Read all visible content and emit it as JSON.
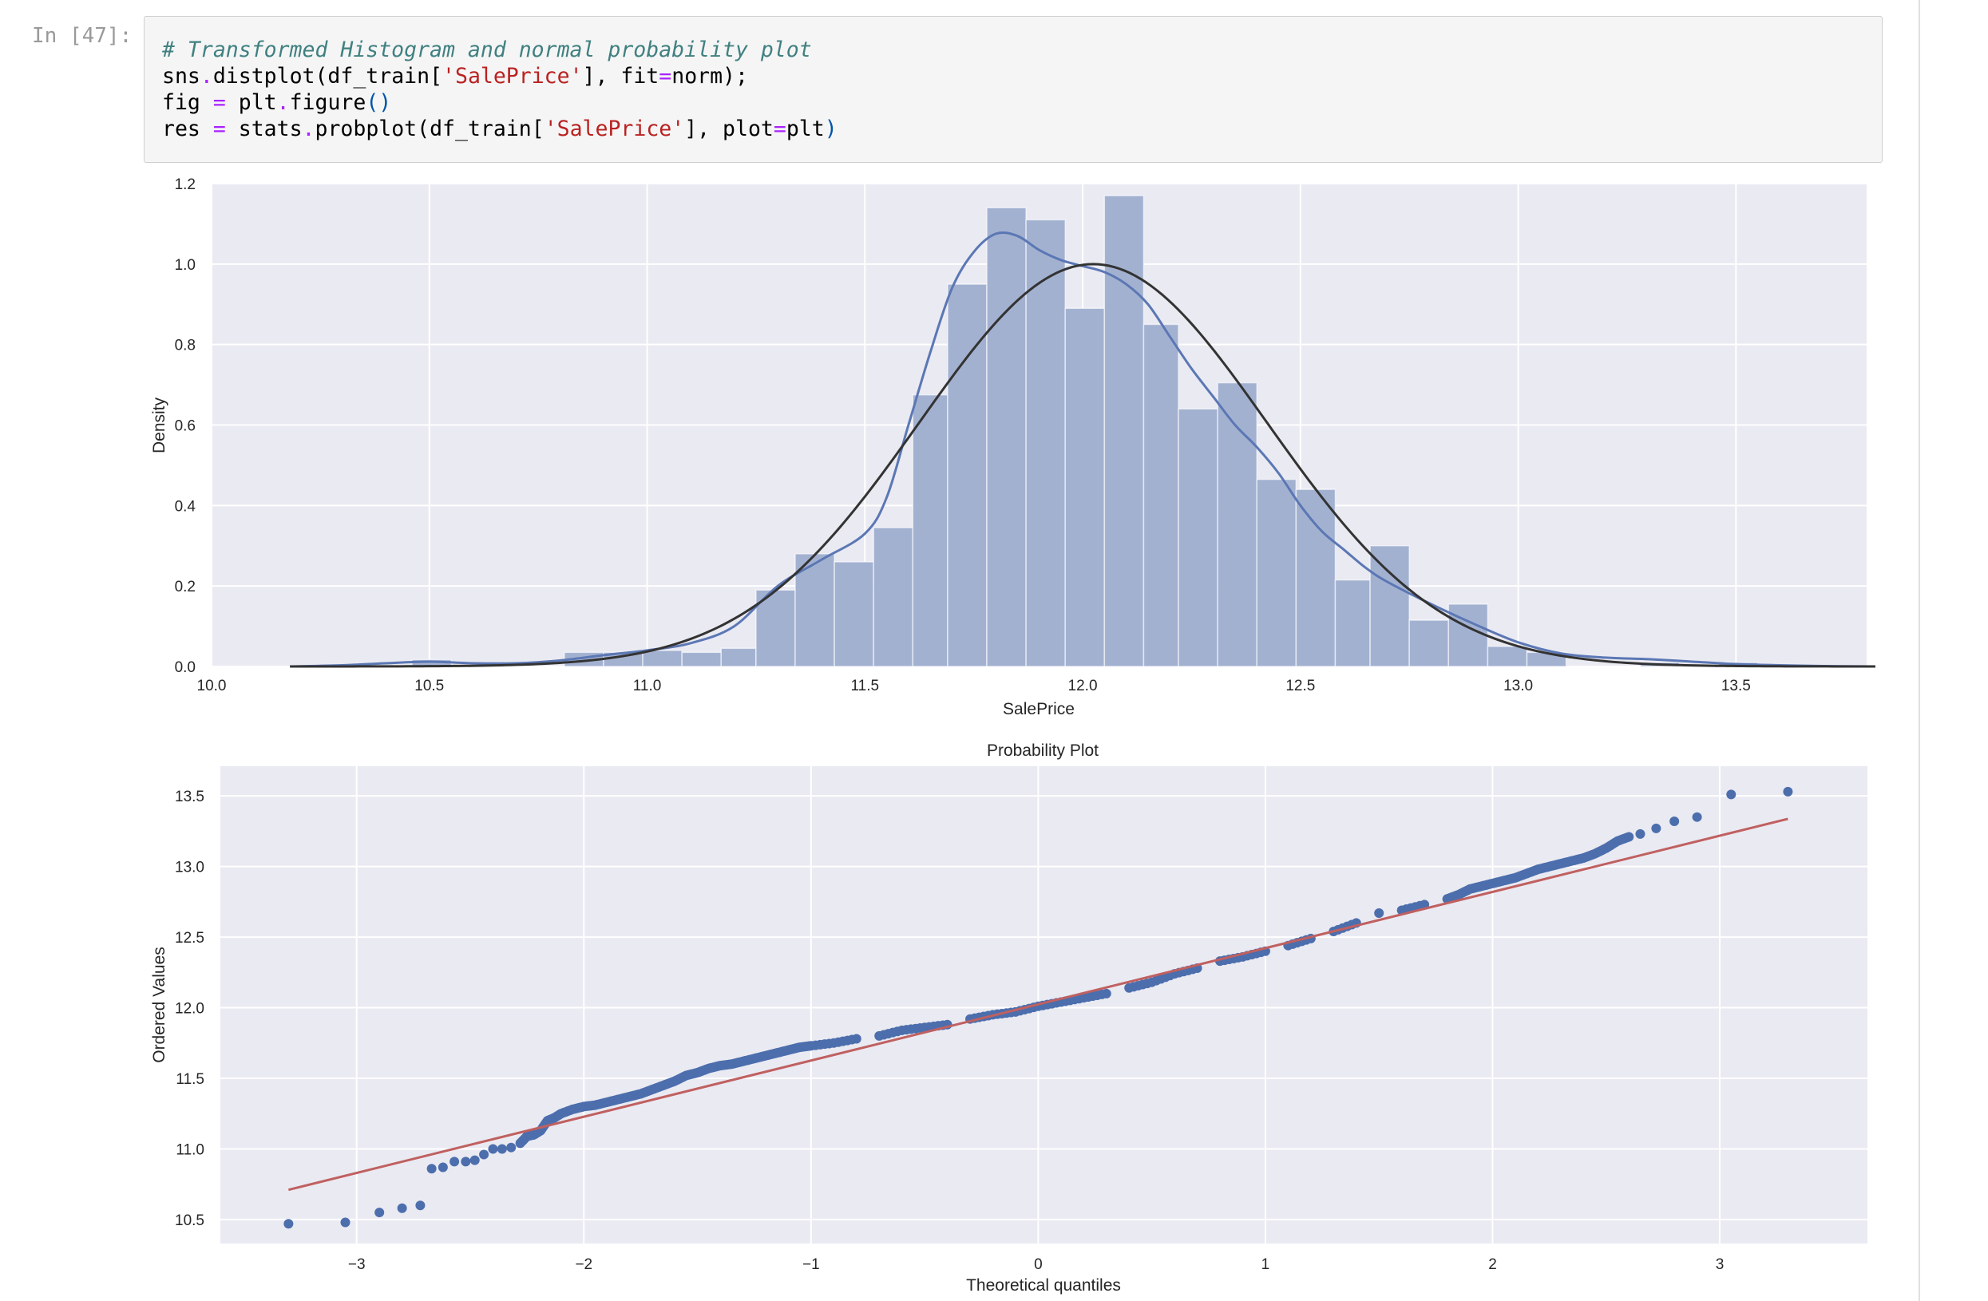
{
  "cell": {
    "prompt": "In [47]:",
    "lines": [
      [
        {
          "t": "# Transformed Histogram and normal probability plot",
          "c": "c-comment"
        }
      ],
      [
        {
          "t": "sns",
          "c": ""
        },
        {
          "t": ".",
          "c": "c-op"
        },
        {
          "t": "distplot(df_train[",
          "c": ""
        },
        {
          "t": "'SalePrice'",
          "c": "c-str"
        },
        {
          "t": "], fit",
          "c": ""
        },
        {
          "t": "=",
          "c": "c-op"
        },
        {
          "t": "norm);",
          "c": ""
        }
      ],
      [
        {
          "t": "fig ",
          "c": ""
        },
        {
          "t": "=",
          "c": "c-op"
        },
        {
          "t": " plt",
          "c": ""
        },
        {
          "t": ".",
          "c": "c-op"
        },
        {
          "t": "figure",
          "c": ""
        },
        {
          "t": "()",
          "c": "c-paren"
        }
      ],
      [
        {
          "t": "res ",
          "c": ""
        },
        {
          "t": "=",
          "c": "c-op"
        },
        {
          "t": " stats",
          "c": ""
        },
        {
          "t": ".",
          "c": "c-op"
        },
        {
          "t": "probplot(df_train[",
          "c": ""
        },
        {
          "t": "'SalePrice'",
          "c": "c-str"
        },
        {
          "t": "], plot",
          "c": ""
        },
        {
          "t": "=",
          "c": "c-op"
        },
        {
          "t": "plt",
          "c": ""
        },
        {
          "t": ")",
          "c": "c-paren"
        }
      ]
    ]
  },
  "colors": {
    "plot_bg": "#eaeaf2",
    "grid": "#ffffff",
    "bars": "#a3b1d1",
    "kde": "#5b77b4",
    "fit": "#333333",
    "points": "#4c6ead",
    "ref_line": "#c06060"
  },
  "chart_data": [
    {
      "type": "bar",
      "title": "",
      "xlabel": "SalePrice",
      "ylabel": "Density",
      "xlim": [
        10.0,
        13.8
      ],
      "ylim": [
        0.0,
        1.2
      ],
      "xticks": [
        "10.0",
        "10.5",
        "11.0",
        "11.5",
        "12.0",
        "12.5",
        "13.0",
        "13.5"
      ],
      "yticks": [
        "0.0",
        "0.2",
        "0.4",
        "0.6",
        "0.8",
        "1.0",
        "1.2"
      ],
      "grid": true,
      "bins": [
        {
          "x0": 10.46,
          "x1": 10.55,
          "value": 0.017
        },
        {
          "x0": 10.55,
          "x1": 10.64,
          "value": 0.0
        },
        {
          "x0": 10.64,
          "x1": 10.72,
          "value": 0.0
        },
        {
          "x0": 10.72,
          "x1": 10.81,
          "value": 0.0
        },
        {
          "x0": 10.81,
          "x1": 10.9,
          "value": 0.035
        },
        {
          "x0": 10.9,
          "x1": 10.99,
          "value": 0.035
        },
        {
          "x0": 10.99,
          "x1": 11.08,
          "value": 0.04
        },
        {
          "x0": 11.08,
          "x1": 11.17,
          "value": 0.035
        },
        {
          "x0": 11.17,
          "x1": 11.25,
          "value": 0.045
        },
        {
          "x0": 11.25,
          "x1": 11.34,
          "value": 0.19
        },
        {
          "x0": 11.34,
          "x1": 11.43,
          "value": 0.28
        },
        {
          "x0": 11.43,
          "x1": 11.52,
          "value": 0.26
        },
        {
          "x0": 11.52,
          "x1": 11.61,
          "value": 0.345
        },
        {
          "x0": 11.61,
          "x1": 11.69,
          "value": 0.675
        },
        {
          "x0": 11.69,
          "x1": 11.78,
          "value": 0.95
        },
        {
          "x0": 11.78,
          "x1": 11.87,
          "value": 1.14
        },
        {
          "x0": 11.87,
          "x1": 11.96,
          "value": 1.11
        },
        {
          "x0": 11.96,
          "x1": 12.05,
          "value": 0.89
        },
        {
          "x0": 12.05,
          "x1": 12.14,
          "value": 1.17
        },
        {
          "x0": 12.14,
          "x1": 12.22,
          "value": 0.85
        },
        {
          "x0": 12.22,
          "x1": 12.31,
          "value": 0.64
        },
        {
          "x0": 12.31,
          "x1": 12.4,
          "value": 0.705
        },
        {
          "x0": 12.4,
          "x1": 12.49,
          "value": 0.465
        },
        {
          "x0": 12.49,
          "x1": 12.58,
          "value": 0.44
        },
        {
          "x0": 12.58,
          "x1": 12.66,
          "value": 0.215
        },
        {
          "x0": 12.66,
          "x1": 12.75,
          "value": 0.3
        },
        {
          "x0": 12.75,
          "x1": 12.84,
          "value": 0.115
        },
        {
          "x0": 12.84,
          "x1": 12.93,
          "value": 0.155
        },
        {
          "x0": 12.93,
          "x1": 13.02,
          "value": 0.05
        },
        {
          "x0": 13.02,
          "x1": 13.11,
          "value": 0.035
        },
        {
          "x0": 13.11,
          "x1": 13.19,
          "value": 0.0
        },
        {
          "x0": 13.19,
          "x1": 13.28,
          "value": 0.0
        },
        {
          "x0": 13.28,
          "x1": 13.37,
          "value": 0.01
        },
        {
          "x0": 13.37,
          "x1": 13.46,
          "value": 0.0
        },
        {
          "x0": 13.46,
          "x1": 13.55,
          "value": 0.01
        }
      ],
      "kde": {
        "x": [
          10.18,
          10.3,
          10.4,
          10.5,
          10.6,
          10.7,
          10.8,
          10.9,
          11.0,
          11.1,
          11.2,
          11.3,
          11.4,
          11.5,
          11.55,
          11.6,
          11.65,
          11.7,
          11.75,
          11.8,
          11.85,
          11.9,
          11.95,
          12.0,
          12.05,
          12.1,
          12.15,
          12.2,
          12.25,
          12.3,
          12.35,
          12.4,
          12.45,
          12.5,
          12.55,
          12.6,
          12.65,
          12.7,
          12.8,
          12.9,
          13.0,
          13.1,
          13.2,
          13.3,
          13.4,
          13.5,
          13.6,
          13.7,
          13.82
        ],
        "y": [
          0.0,
          0.003,
          0.008,
          0.012,
          0.008,
          0.008,
          0.015,
          0.028,
          0.04,
          0.058,
          0.1,
          0.2,
          0.265,
          0.33,
          0.42,
          0.6,
          0.78,
          0.94,
          1.03,
          1.075,
          1.07,
          1.035,
          1.01,
          0.995,
          0.98,
          0.95,
          0.9,
          0.82,
          0.74,
          0.67,
          0.6,
          0.545,
          0.48,
          0.4,
          0.335,
          0.29,
          0.245,
          0.21,
          0.155,
          0.105,
          0.06,
          0.032,
          0.022,
          0.018,
          0.012,
          0.006,
          0.003,
          0.001,
          0.0
        ]
      },
      "normal_fit": {
        "mean": 12.024,
        "sd": 0.399,
        "xmin": 10.18,
        "xmax": 13.82
      }
    },
    {
      "type": "scatter",
      "title": "Probability Plot",
      "xlabel": "Theoretical quantiles",
      "ylabel": "Ordered Values",
      "xlim": [
        -3.6,
        3.65
      ],
      "ylim": [
        10.33,
        13.71
      ],
      "xticks": [
        "−3",
        "−2",
        "−1",
        "0",
        "1",
        "2",
        "3"
      ],
      "yticks": [
        "10.5",
        "11.0",
        "11.5",
        "12.0",
        "12.5",
        "13.0",
        "13.5"
      ],
      "grid": true,
      "fit_line": {
        "slope": 0.398,
        "intercept": 12.024,
        "x": [
          -3.3,
          3.3
        ]
      },
      "points": {
        "x": [
          -3.3,
          -3.05,
          -2.9,
          -2.8,
          -2.72,
          -2.67,
          -2.62,
          -2.57,
          -2.52,
          -2.48,
          -2.44,
          -2.4,
          -2.36,
          -2.32,
          -2.28,
          -2.25,
          -2.22,
          -2.19,
          -2.16,
          -2.13,
          -2.1,
          -2.05,
          -2.0,
          -1.95,
          -1.9,
          -1.85,
          -1.8,
          -1.75,
          -1.7,
          -1.65,
          -1.6,
          -1.55,
          -1.5,
          -1.45,
          -1.4,
          -1.35,
          -1.3,
          -1.25,
          -1.2,
          -1.15,
          -1.1,
          -1.05,
          -1.0,
          -0.9,
          -0.8,
          -0.7,
          -0.6,
          -0.5,
          -0.4,
          -0.3,
          -0.2,
          -0.1,
          0.0,
          0.1,
          0.2,
          0.3,
          0.4,
          0.5,
          0.6,
          0.7,
          0.8,
          0.9,
          1.0,
          1.1,
          1.2,
          1.3,
          1.4,
          1.5,
          1.6,
          1.7,
          1.8,
          1.85,
          1.9,
          1.95,
          2.0,
          2.05,
          2.1,
          2.15,
          2.2,
          2.25,
          2.3,
          2.35,
          2.4,
          2.45,
          2.5,
          2.55,
          2.6,
          2.65,
          2.72,
          2.8,
          2.9,
          3.05,
          3.3
        ],
        "y": [
          10.47,
          10.48,
          10.55,
          10.58,
          10.6,
          10.86,
          10.87,
          10.91,
          10.91,
          10.92,
          10.96,
          11.0,
          11.0,
          11.01,
          11.04,
          11.09,
          11.1,
          11.13,
          11.2,
          11.22,
          11.25,
          11.28,
          11.3,
          11.31,
          11.33,
          11.35,
          11.37,
          11.39,
          11.42,
          11.45,
          11.48,
          11.52,
          11.54,
          11.57,
          11.59,
          11.6,
          11.62,
          11.64,
          11.66,
          11.68,
          11.7,
          11.72,
          11.73,
          11.75,
          11.78,
          11.8,
          11.84,
          11.86,
          11.88,
          11.92,
          11.95,
          11.97,
          12.01,
          12.04,
          12.07,
          12.1,
          12.14,
          12.18,
          12.24,
          12.28,
          12.33,
          12.36,
          12.4,
          12.44,
          12.49,
          12.54,
          12.6,
          12.67,
          12.69,
          12.73,
          12.77,
          12.8,
          12.84,
          12.86,
          12.88,
          12.9,
          12.92,
          12.95,
          12.98,
          13.0,
          13.02,
          13.04,
          13.06,
          13.09,
          13.13,
          13.18,
          13.21,
          13.23,
          13.27,
          13.32,
          13.35,
          13.51,
          13.53
        ]
      }
    }
  ]
}
